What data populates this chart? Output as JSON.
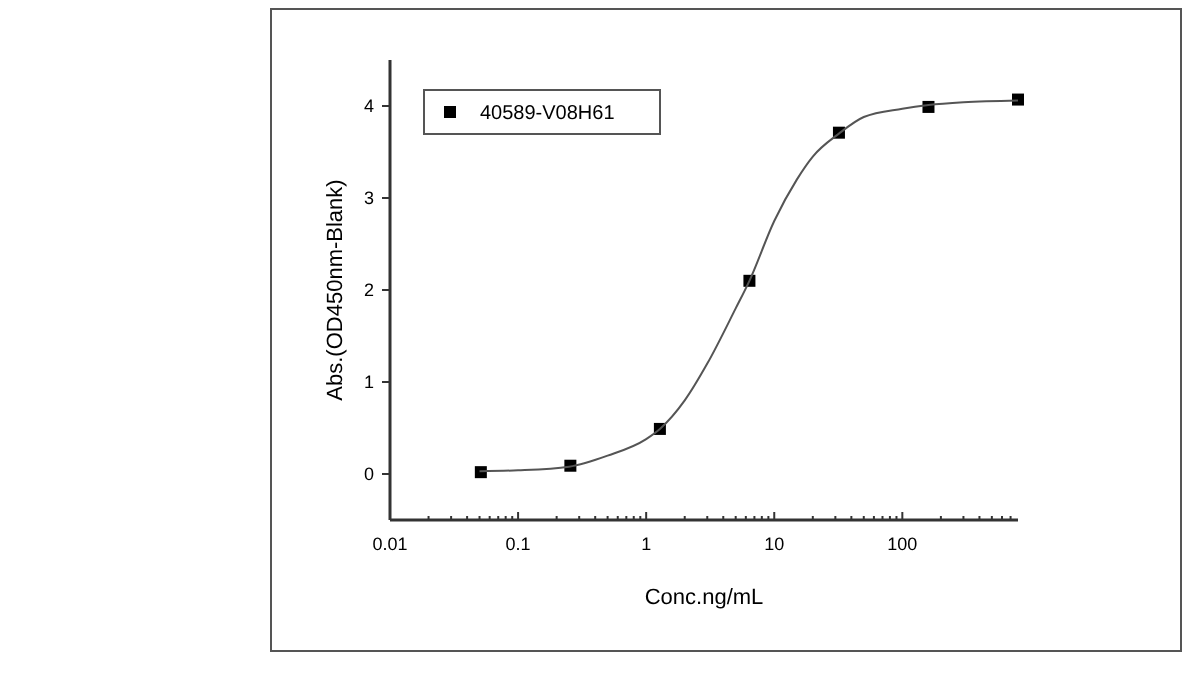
{
  "chart_data": {
    "type": "scatter",
    "xlabel": "Conc.ng/mL",
    "ylabel": "Abs.(OD450nm-Blank)",
    "log": "x",
    "legend": "top left",
    "marker": "square",
    "x": [
      0.0512,
      0.256,
      1.28,
      6.4,
      32,
      160,
      800
    ],
    "series": [
      {
        "name": "40589-V08H61",
        "color": "#000000",
        "values": [
          0.02,
          0.09,
          0.49,
          2.1,
          3.71,
          3.99,
          4.07
        ]
      },
      {
        "type": "line",
        "color": "#555555",
        "marker": "none",
        "x": [
          0.05,
          0.1,
          0.25,
          0.5,
          1,
          1.28,
          2,
          3,
          5,
          6.4,
          10,
          15,
          20,
          32,
          50,
          100,
          160,
          300,
          800
        ],
        "values": [
          0.03,
          0.04,
          0.08,
          0.2,
          0.38,
          0.49,
          0.8,
          1.2,
          1.8,
          2.1,
          2.75,
          3.2,
          3.45,
          3.7,
          3.88,
          3.97,
          4.01,
          4.04,
          4.06
        ]
      }
    ],
    "xlim": [
      0.01,
      800
    ],
    "ylim": [
      -0.5,
      4.5
    ],
    "xticks": [
      0.01,
      {
        "value": 0.02,
        "label": null
      },
      {
        "value": 0.03,
        "label": null
      },
      {
        "value": 0.04,
        "label": null
      },
      {
        "value": 0.05,
        "label": null
      },
      {
        "value": 0.06,
        "label": null
      },
      {
        "value": 0.07,
        "label": null
      },
      {
        "value": 0.08,
        "label": null
      },
      {
        "value": 0.09,
        "label": null
      },
      0.1,
      {
        "value": 0.2,
        "label": null
      },
      {
        "value": 0.3,
        "label": null
      },
      {
        "value": 0.4,
        "label": null
      },
      {
        "value": 0.5,
        "label": null
      },
      {
        "value": 0.6,
        "label": null
      },
      {
        "value": 0.7,
        "label": null
      },
      {
        "value": 0.8,
        "label": null
      },
      {
        "value": 0.9,
        "label": null
      },
      1,
      {
        "value": 2,
        "label": null
      },
      {
        "value": 3,
        "label": null
      },
      {
        "value": 4,
        "label": null
      },
      {
        "value": 5,
        "label": null
      },
      {
        "value": 6,
        "label": null
      },
      {
        "value": 7,
        "label": null
      },
      {
        "value": 8,
        "label": null
      },
      {
        "value": 9,
        "label": null
      },
      10,
      {
        "value": 20,
        "label": null
      },
      {
        "value": 30,
        "label": null
      },
      {
        "value": 40,
        "label": null
      },
      {
        "value": 50,
        "label": null
      },
      {
        "value": 60,
        "label": null
      },
      {
        "value": 70,
        "label": null
      },
      {
        "value": 80,
        "label": null
      },
      {
        "value": 90,
        "label": null
      },
      100,
      {
        "value": 200,
        "label": null
      },
      {
        "value": 300,
        "label": null
      },
      {
        "value": 400,
        "label": null
      },
      {
        "value": 500,
        "label": null
      },
      {
        "value": 600,
        "label": null
      },
      {
        "value": 700,
        "label": null
      }
    ],
    "yticks": [
      0,
      1,
      2,
      3,
      4
    ]
  }
}
